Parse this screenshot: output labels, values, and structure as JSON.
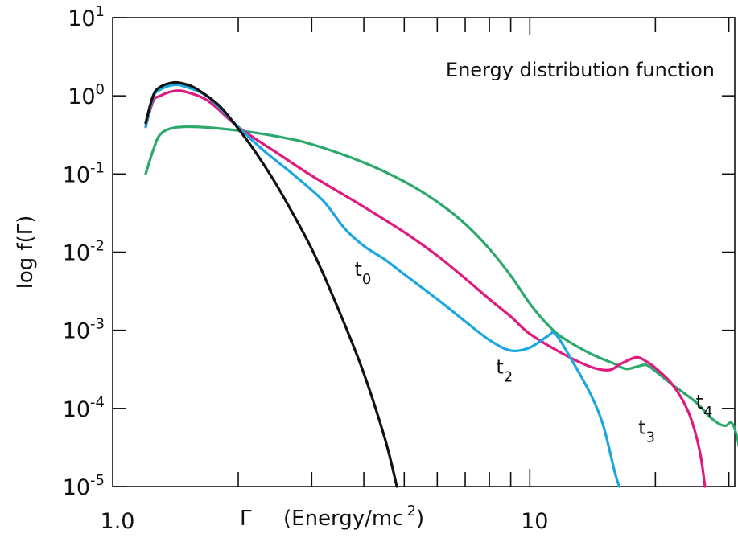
{
  "chart_data": {
    "type": "line",
    "title": "",
    "annotation": "Energy distribution function",
    "xscale": "log",
    "yscale": "log",
    "xlim": [
      1.0,
      31.0
    ],
    "ylim": [
      1e-05,
      10
    ],
    "grid": false,
    "xlabel": {
      "symbol": "Γ",
      "text": "(Energy/mc",
      "superscript": "2",
      "close": ")"
    },
    "ylabel": "log f(Γ)",
    "x_tick_labels": [
      {
        "value": 1.0,
        "label": "1.0"
      },
      {
        "value": 10,
        "label": "10"
      }
    ],
    "x_minor_ticks": [
      2,
      3,
      4,
      5,
      6,
      7,
      8,
      9,
      20,
      30
    ],
    "y_tick_labels": [
      {
        "value": 10,
        "base": "10",
        "exp": "1"
      },
      {
        "value": 1,
        "base": "10",
        "exp": "0"
      },
      {
        "value": 0.1,
        "base": "10",
        "exp": "-1"
      },
      {
        "value": 0.01,
        "base": "10",
        "exp": "-2"
      },
      {
        "value": 0.001,
        "base": "10",
        "exp": "-3"
      },
      {
        "value": 0.0001,
        "base": "10",
        "exp": "-4"
      },
      {
        "value": 1e-05,
        "base": "10",
        "exp": "-5"
      }
    ],
    "series": [
      {
        "name": "t₀",
        "label_main": "t",
        "label_sub": "0",
        "label_at": [
          3.8,
          0.005
        ],
        "color": "#111111",
        "points": [
          [
            1.2,
            0.45
          ],
          [
            1.25,
            1.0
          ],
          [
            1.3,
            1.3
          ],
          [
            1.4,
            1.48
          ],
          [
            1.5,
            1.4
          ],
          [
            1.6,
            1.2
          ],
          [
            1.8,
            0.75
          ],
          [
            2.0,
            0.38
          ],
          [
            2.2,
            0.19
          ],
          [
            2.5,
            0.065
          ],
          [
            3.0,
            0.011
          ],
          [
            3.5,
            0.0017
          ],
          [
            4.0,
            0.00028
          ],
          [
            4.5,
            4e-05
          ],
          [
            4.8,
            1e-05
          ]
        ]
      },
      {
        "name": "t₂",
        "label_main": "t",
        "label_sub": "2",
        "label_at": [
          8.3,
          0.00028
        ],
        "color": "#1aa7df",
        "points": [
          [
            1.2,
            0.4
          ],
          [
            1.25,
            0.95
          ],
          [
            1.3,
            1.2
          ],
          [
            1.4,
            1.38
          ],
          [
            1.5,
            1.3
          ],
          [
            1.7,
            0.95
          ],
          [
            2.0,
            0.4
          ],
          [
            2.3,
            0.2
          ],
          [
            2.7,
            0.1
          ],
          [
            3.2,
            0.045
          ],
          [
            3.6,
            0.02
          ],
          [
            4.0,
            0.012
          ],
          [
            4.5,
            0.008
          ],
          [
            5.0,
            0.0052
          ],
          [
            6.0,
            0.0025
          ],
          [
            7.0,
            0.0013
          ],
          [
            8.0,
            0.00075
          ],
          [
            9.0,
            0.00055
          ],
          [
            10.0,
            0.0006
          ],
          [
            11.0,
            0.00083
          ],
          [
            11.5,
            0.0009
          ],
          [
            12.5,
            0.00045
          ],
          [
            14.0,
            0.00015
          ],
          [
            15.0,
            6e-05
          ],
          [
            16.0,
            1.5e-05
          ],
          [
            16.4,
            1e-05
          ]
        ]
      },
      {
        "name": "t₃",
        "label_main": "t",
        "label_sub": "3",
        "label_at": [
          18.2,
          4.7e-05
        ],
        "color": "#e0197f",
        "points": [
          [
            1.2,
            0.4
          ],
          [
            1.25,
            0.85
          ],
          [
            1.3,
            1.0
          ],
          [
            1.4,
            1.15
          ],
          [
            1.5,
            1.12
          ],
          [
            1.7,
            0.85
          ],
          [
            2.0,
            0.4
          ],
          [
            2.5,
            0.18
          ],
          [
            3.0,
            0.095
          ],
          [
            4.0,
            0.038
          ],
          [
            5.0,
            0.018
          ],
          [
            6.0,
            0.009
          ],
          [
            7.0,
            0.0046
          ],
          [
            8.0,
            0.0025
          ],
          [
            9.0,
            0.0015
          ],
          [
            10.0,
            0.0009
          ],
          [
            12.0,
            0.0005
          ],
          [
            14.0,
            0.00034
          ],
          [
            15.5,
            0.00031
          ],
          [
            16.5,
            0.00037
          ],
          [
            18.0,
            0.00045
          ],
          [
            19.0,
            0.0004
          ],
          [
            20.0,
            0.00033
          ],
          [
            22.0,
            0.0002
          ],
          [
            24.0,
            9e-05
          ],
          [
            25.5,
            3e-05
          ],
          [
            26.3,
            1e-05
          ]
        ]
      },
      {
        "name": "t₄",
        "label_main": "t",
        "label_sub": "4",
        "label_at": [
          25.0,
          0.0001
        ],
        "color": "#2ba86c",
        "points": [
          [
            1.2,
            0.1
          ],
          [
            1.25,
            0.2
          ],
          [
            1.3,
            0.32
          ],
          [
            1.4,
            0.39
          ],
          [
            1.6,
            0.4
          ],
          [
            2.0,
            0.36
          ],
          [
            2.5,
            0.3
          ],
          [
            3.0,
            0.24
          ],
          [
            4.0,
            0.14
          ],
          [
            5.0,
            0.08
          ],
          [
            6.0,
            0.044
          ],
          [
            7.0,
            0.023
          ],
          [
            8.0,
            0.011
          ],
          [
            9.0,
            0.005
          ],
          [
            10.0,
            0.0022
          ],
          [
            11.0,
            0.0012
          ],
          [
            12.0,
            0.0008
          ],
          [
            14.0,
            0.0005
          ],
          [
            16.0,
            0.00037
          ],
          [
            17.0,
            0.00032
          ],
          [
            18.0,
            0.00034
          ],
          [
            19.0,
            0.00036
          ],
          [
            20.0,
            0.0003
          ],
          [
            22.0,
            0.0002
          ],
          [
            25.0,
            0.00012
          ],
          [
            27.0,
            7.8e-05
          ],
          [
            28.5,
            6.3e-05
          ],
          [
            29.5,
            6e-05
          ],
          [
            30.5,
            6.5e-05
          ],
          [
            31.5,
            4e-05
          ],
          [
            32.5,
            1.5e-05
          ],
          [
            33.0,
            1e-05
          ]
        ]
      }
    ]
  }
}
